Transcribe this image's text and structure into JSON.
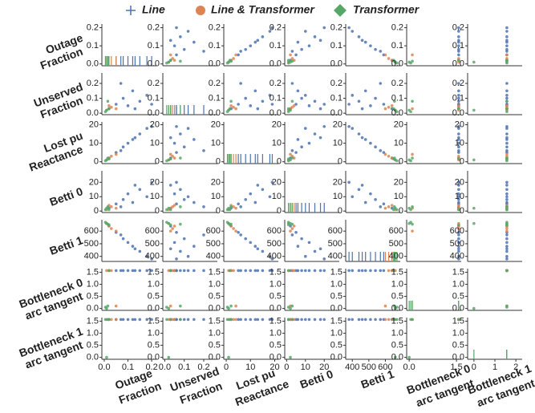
{
  "chart_data": {
    "type": "pairplot",
    "series": [
      {
        "name": "Line",
        "color": "#4c72b0",
        "rows": [
          [
            0.02,
            0.03,
            2,
            2,
            640,
            1.57,
            1.57
          ],
          [
            0.05,
            0.06,
            5,
            5,
            590,
            1.57,
            1.57
          ],
          [
            0.08,
            0.1,
            8,
            8,
            540,
            1.57,
            1.57
          ],
          [
            0.1,
            0.05,
            10,
            12,
            510,
            1.57,
            1.57
          ],
          [
            0.12,
            0.15,
            12,
            6,
            480,
            1.57,
            1.57
          ],
          [
            0.15,
            0.08,
            15,
            15,
            440,
            1.57,
            1.57
          ],
          [
            0.18,
            0.12,
            18,
            10,
            400,
            1.57,
            1.57
          ],
          [
            0.2,
            0.06,
            19,
            20,
            380,
            1.57,
            1.57
          ],
          [
            0.07,
            0.2,
            6,
            3,
            570,
            1.57,
            1.57
          ],
          [
            0.13,
            0.03,
            13,
            18,
            460,
            1.57,
            1.57
          ]
        ]
      },
      {
        "name": "Line & Transformer",
        "color": "#dd8452",
        "rows": [
          [
            0.01,
            0.02,
            1,
            1,
            660,
            1.57,
            1.57
          ],
          [
            0.03,
            0.04,
            3,
            3,
            620,
            1.57,
            1.57
          ],
          [
            0.05,
            0.03,
            4,
            2,
            600,
            0.1,
            1.57
          ],
          [
            0.02,
            0.05,
            2,
            4,
            640,
            1.57,
            1.57
          ]
        ]
      },
      {
        "name": "Transformer",
        "color": "#55a868",
        "rows": [
          [
            0.005,
            0.01,
            0.5,
            1,
            670,
            0.05,
            1.57
          ],
          [
            0.01,
            0.02,
            1,
            2,
            660,
            0,
            0
          ],
          [
            0.02,
            0.03,
            1.5,
            1,
            650,
            1.57,
            1.57
          ],
          [
            0.015,
            0.08,
            2,
            3,
            655,
            0.1,
            1.57
          ]
        ]
      }
    ],
    "variables": [
      {
        "label": [
          "Outage",
          "Fraction"
        ],
        "xlim": [
          -0.01,
          0.22
        ],
        "ylim": [
          -0.01,
          0.22
        ],
        "xticks": [
          {
            "value": 0,
            "label": "0.0"
          },
          0.1,
          0.2
        ],
        "yticks": [
          {
            "value": 0,
            "label": "0.0"
          },
          0.1,
          0.2
        ]
      },
      {
        "label": [
          "Unserved",
          "Fraction"
        ],
        "xlim": [
          -0.01,
          0.27
        ],
        "ylim": [
          -0.01,
          0.27
        ],
        "xticks": [
          {
            "value": 0,
            "label": "0.0"
          },
          0.1,
          0.2
        ],
        "yticks": [
          {
            "value": 0,
            "label": "0.0"
          },
          0.1,
          0.2
        ]
      },
      {
        "label": [
          "Lost pu",
          "Reactance"
        ],
        "xlim": [
          -1,
          21.5
        ],
        "ylim": [
          -1,
          21.5
        ],
        "xticks": [
          0,
          10,
          20
        ],
        "yticks": [
          0,
          10,
          20
        ]
      },
      {
        "label": [
          "Betti 0"
        ],
        "xlim": [
          -1,
          28
        ],
        "ylim": [
          -1,
          28
        ],
        "xticks": [
          0,
          10,
          20
        ],
        "yticks": [
          0,
          10,
          20
        ]
      },
      {
        "label": [
          "Betti 1"
        ],
        "xlim": [
          360,
          690
        ],
        "ylim": [
          360,
          690
        ],
        "xticks": [
          400,
          500,
          600
        ],
        "yticks": [
          400,
          500,
          600
        ]
      },
      {
        "label": [
          "Bottleneck 0",
          "arc tangent"
        ],
        "xlim": [
          -0.08,
          1.65
        ],
        "ylim": [
          -0.08,
          1.65
        ],
        "xticks": [
          {
            "value": 0,
            "label": "0.0"
          },
          1.5
        ],
        "yticks": [
          {
            "value": 0,
            "label": "0.0"
          },
          0.5,
          {
            "value": 1,
            "label": "1.0"
          },
          1.5
        ]
      },
      {
        "label": [
          "Bottleneck 1",
          "arc tangent"
        ],
        "xlim": [
          -0.3,
          2.3
        ],
        "ylim": [
          -0.08,
          1.65
        ],
        "xticks": [
          0,
          1,
          2
        ],
        "yticks": [
          {
            "value": 0,
            "label": "0.0"
          },
          0.5,
          {
            "value": 1,
            "label": "1.0"
          },
          1.5
        ]
      }
    ]
  }
}
